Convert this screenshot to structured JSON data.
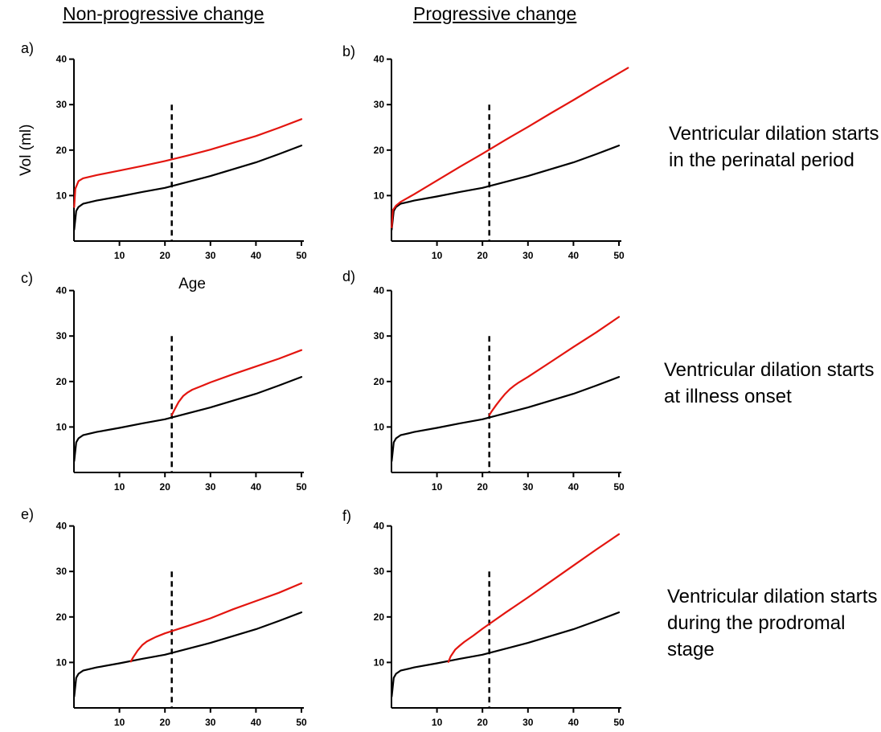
{
  "column_headers": [
    "Non-progressive change",
    "Progressive change"
  ],
  "row_notes": [
    "Ventricular dilation starts in the perinatal period",
    "Ventricular dilation starts at illness onset",
    "Ventricular dilation starts during the prodromal stage"
  ],
  "colors": {
    "control": "#000000",
    "patient": "#e3150f",
    "onset_line": "#000000"
  },
  "chart_data": [
    {
      "type": "line",
      "panel_label": "a)",
      "ylabel": "Vol (ml)",
      "xlabel": "",
      "xlim": [
        0,
        50
      ],
      "ylim": [
        0,
        40
      ],
      "xticks": [
        10,
        20,
        30,
        40,
        50
      ],
      "yticks": [
        10,
        20,
        30,
        40
      ],
      "onset_line_x": 21.5,
      "series": [
        {
          "color": "black",
          "x": [
            0.05,
            0.5,
            1,
            2,
            5,
            10,
            15,
            20,
            25,
            30,
            35,
            40,
            45,
            50
          ],
          "y": [
            2.5,
            6.6,
            7.5,
            8.2,
            8.9,
            9.8,
            10.8,
            11.7,
            13.0,
            14.3,
            15.8,
            17.3,
            19.1,
            21.0
          ]
        },
        {
          "color": "red",
          "x": [
            0.05,
            0.3,
            1,
            2,
            5,
            10,
            15,
            20,
            25,
            30,
            35,
            40,
            45,
            50
          ],
          "y": [
            7.5,
            11.5,
            13.2,
            13.8,
            14.5,
            15.5,
            16.5,
            17.6,
            18.8,
            20.1,
            21.6,
            23.1,
            24.9,
            26.8
          ]
        }
      ]
    },
    {
      "type": "line",
      "panel_label": "b)",
      "ylabel": "",
      "xlabel": "",
      "xlim": [
        0,
        50
      ],
      "ylim": [
        0,
        40
      ],
      "xticks": [
        10,
        20,
        30,
        40,
        50
      ],
      "yticks": [
        10,
        20,
        30,
        40
      ],
      "onset_line_x": 21.5,
      "series": [
        {
          "color": "black",
          "x": [
            0.05,
            0.5,
            1,
            2,
            5,
            10,
            15,
            20,
            25,
            30,
            35,
            40,
            45,
            50
          ],
          "y": [
            2.5,
            6.6,
            7.5,
            8.2,
            8.9,
            9.8,
            10.8,
            11.7,
            13.0,
            14.3,
            15.8,
            17.3,
            19.1,
            21.0
          ]
        },
        {
          "color": "red",
          "x": [
            0.05,
            0.3,
            1,
            2,
            5,
            10,
            15,
            20,
            25,
            30,
            35,
            40,
            45,
            50,
            52
          ],
          "y": [
            3.0,
            6.8,
            7.8,
            8.6,
            10.3,
            13.3,
            16.3,
            19.2,
            22.2,
            25.1,
            28.1,
            31.0,
            34.0,
            36.9,
            38.1
          ]
        }
      ]
    },
    {
      "type": "line",
      "panel_label": "c)",
      "ylabel": "",
      "xlabel": "Age",
      "xlim": [
        0,
        50
      ],
      "ylim": [
        0,
        40
      ],
      "xticks": [
        10,
        20,
        30,
        40,
        50
      ],
      "yticks": [
        10,
        20,
        30,
        40
      ],
      "onset_line_x": 21.5,
      "series": [
        {
          "color": "black",
          "x": [
            0.05,
            0.5,
            1,
            2,
            5,
            10,
            15,
            20,
            25,
            30,
            35,
            40,
            45,
            50
          ],
          "y": [
            2.5,
            6.6,
            7.5,
            8.2,
            8.9,
            9.8,
            10.8,
            11.7,
            13.0,
            14.3,
            15.8,
            17.3,
            19.1,
            21.0
          ]
        },
        {
          "color": "red",
          "x": [
            21.5,
            22,
            23,
            24,
            25,
            26,
            28,
            30,
            35,
            40,
            45,
            50
          ],
          "y": [
            12.6,
            13.6,
            15.5,
            16.8,
            17.6,
            18.2,
            19.0,
            19.8,
            21.6,
            23.3,
            25.0,
            26.9
          ]
        }
      ]
    },
    {
      "type": "line",
      "panel_label": "d)",
      "ylabel": "",
      "xlabel": "",
      "xlim": [
        0,
        50
      ],
      "ylim": [
        0,
        40
      ],
      "xticks": [
        10,
        20,
        30,
        40,
        50
      ],
      "yticks": [
        10,
        20,
        30,
        40
      ],
      "onset_line_x": 21.5,
      "series": [
        {
          "color": "black",
          "x": [
            0.05,
            0.5,
            1,
            2,
            5,
            10,
            15,
            20,
            25,
            30,
            35,
            40,
            45,
            50
          ],
          "y": [
            2.5,
            6.6,
            7.5,
            8.2,
            8.9,
            9.8,
            10.8,
            11.7,
            13.0,
            14.3,
            15.8,
            17.3,
            19.1,
            21.0
          ]
        },
        {
          "color": "red",
          "x": [
            21.5,
            22,
            23,
            24,
            25,
            26,
            27,
            28,
            30,
            35,
            40,
            45,
            50
          ],
          "y": [
            12.6,
            13.4,
            14.8,
            16.1,
            17.3,
            18.3,
            19.1,
            19.8,
            21.0,
            24.3,
            27.6,
            30.8,
            34.2
          ]
        }
      ]
    },
    {
      "type": "line",
      "panel_label": "e)",
      "ylabel": "",
      "xlabel": "",
      "xlim": [
        0,
        50
      ],
      "ylim": [
        0,
        40
      ],
      "xticks": [
        10,
        20,
        30,
        40,
        50
      ],
      "yticks": [
        10,
        20,
        30,
        40
      ],
      "onset_line_x": 21.5,
      "series": [
        {
          "color": "black",
          "x": [
            0.05,
            0.5,
            1,
            2,
            5,
            10,
            15,
            20,
            25,
            30,
            35,
            40,
            45,
            50
          ],
          "y": [
            2.5,
            6.6,
            7.5,
            8.2,
            8.9,
            9.8,
            10.8,
            11.7,
            13.0,
            14.3,
            15.8,
            17.3,
            19.1,
            21.0
          ]
        },
        {
          "color": "red",
          "x": [
            12.5,
            13,
            14,
            15,
            16,
            17,
            18,
            20,
            25,
            30,
            35,
            40,
            45,
            50
          ],
          "y": [
            10.2,
            11.1,
            12.6,
            13.8,
            14.6,
            15.1,
            15.6,
            16.4,
            18.0,
            19.7,
            21.7,
            23.5,
            25.3,
            27.4
          ]
        }
      ]
    },
    {
      "type": "line",
      "panel_label": "f)",
      "ylabel": "",
      "xlabel": "",
      "xlim": [
        0,
        50
      ],
      "ylim": [
        0,
        40
      ],
      "xticks": [
        10,
        20,
        30,
        40,
        50
      ],
      "yticks": [
        10,
        20,
        30,
        40
      ],
      "onset_line_x": 21.5,
      "series": [
        {
          "color": "black",
          "x": [
            0.05,
            0.5,
            1,
            2,
            5,
            10,
            15,
            20,
            25,
            30,
            35,
            40,
            45,
            50
          ],
          "y": [
            2.5,
            6.6,
            7.5,
            8.2,
            8.9,
            9.8,
            10.8,
            11.7,
            13.0,
            14.3,
            15.8,
            17.3,
            19.1,
            21.0
          ]
        },
        {
          "color": "red",
          "x": [
            12.5,
            13,
            14,
            15,
            16,
            18,
            20,
            25,
            30,
            35,
            40,
            45,
            50
          ],
          "y": [
            10.1,
            11.3,
            12.8,
            13.7,
            14.5,
            15.9,
            17.4,
            20.9,
            24.3,
            27.8,
            31.3,
            34.8,
            38.2
          ]
        }
      ]
    }
  ]
}
